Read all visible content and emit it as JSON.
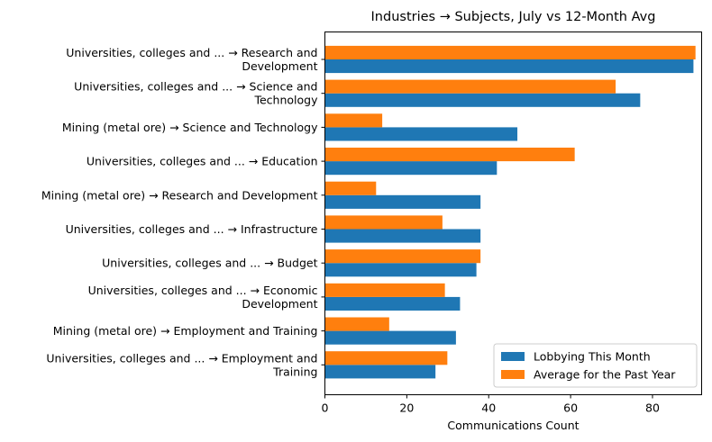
{
  "chart_data": {
    "type": "bar",
    "orientation": "horizontal",
    "title": "Industries → Subjects, July vs 12-Month Avg",
    "xlabel": "Communications Count",
    "ylabel": "",
    "xlim": [
      0,
      92
    ],
    "xticks": [
      0,
      20,
      40,
      60,
      80
    ],
    "grid": false,
    "legend_position": "lower-right",
    "categories": [
      [
        "Universities, colleges and ... → Research and",
        "Development"
      ],
      [
        "Universities, colleges and ... → Science and",
        "Technology"
      ],
      [
        "Mining (metal ore) → Science and Technology"
      ],
      [
        "Universities, colleges and ... → Education"
      ],
      [
        "Mining (metal ore) → Research and Development"
      ],
      [
        "Universities, colleges and ... → Infrastructure"
      ],
      [
        "Universities, colleges and ... → Budget"
      ],
      [
        "Universities, colleges and ... → Economic",
        "Development"
      ],
      [
        "Mining (metal ore) → Employment and Training"
      ],
      [
        "Universities, colleges and ... → Employment and",
        "Training"
      ]
    ],
    "series": [
      {
        "name": "Lobbying This Month",
        "color": "#1f77b4",
        "values": [
          90,
          77,
          47,
          42,
          38,
          38,
          37,
          33,
          32,
          27
        ]
      },
      {
        "name": "Average for the Past Year",
        "color": "#ff7f0e",
        "values": [
          90.5,
          71,
          14,
          61,
          12.5,
          28.7,
          38,
          29.3,
          15.7,
          29.9
        ]
      }
    ]
  }
}
